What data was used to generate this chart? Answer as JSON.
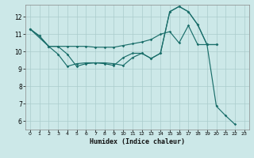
{
  "bg_color": "#cce8e8",
  "grid_color": "#aacccc",
  "line_color": "#1a6e6a",
  "xlabel": "Humidex (Indice chaleur)",
  "xlim": [
    -0.5,
    23.5
  ],
  "ylim": [
    5.5,
    12.7
  ],
  "yticks": [
    6,
    7,
    8,
    9,
    10,
    11,
    12
  ],
  "xticks": [
    0,
    1,
    2,
    3,
    4,
    5,
    6,
    7,
    8,
    9,
    10,
    11,
    12,
    13,
    14,
    15,
    16,
    17,
    18,
    19,
    20,
    21,
    22,
    23
  ],
  "line1": {
    "x": [
      0,
      1,
      2,
      3,
      4,
      5,
      6,
      7,
      8,
      9,
      10,
      11,
      12,
      13,
      14,
      15,
      16,
      17,
      18,
      19,
      20
    ],
    "y": [
      11.3,
      10.9,
      10.3,
      10.3,
      10.3,
      10.3,
      10.3,
      10.25,
      10.25,
      10.25,
      10.35,
      10.45,
      10.55,
      10.7,
      11.0,
      11.15,
      10.5,
      11.5,
      10.4,
      10.4,
      10.4
    ]
  },
  "line2": {
    "x": [
      0,
      1,
      2,
      3,
      4,
      5,
      6,
      7,
      8,
      9,
      10,
      11,
      12,
      13,
      14,
      15,
      16,
      17,
      18,
      19,
      20
    ],
    "y": [
      11.3,
      10.9,
      10.3,
      9.85,
      9.15,
      9.3,
      9.35,
      9.35,
      9.3,
      9.2,
      9.65,
      9.9,
      9.9,
      9.6,
      9.9,
      12.3,
      12.6,
      12.3,
      11.55,
      10.4,
      10.4
    ]
  },
  "line3": {
    "x": [
      0,
      2,
      3,
      4,
      5,
      6,
      7,
      8,
      9,
      10,
      11,
      12,
      13,
      14,
      15,
      16,
      17,
      18,
      19,
      20,
      21,
      22
    ],
    "y": [
      11.3,
      10.3,
      10.3,
      9.85,
      9.15,
      9.3,
      9.35,
      9.35,
      9.3,
      9.2,
      9.65,
      9.9,
      9.6,
      9.9,
      12.3,
      12.6,
      12.3,
      11.55,
      10.4,
      6.85,
      6.3,
      5.8
    ]
  }
}
